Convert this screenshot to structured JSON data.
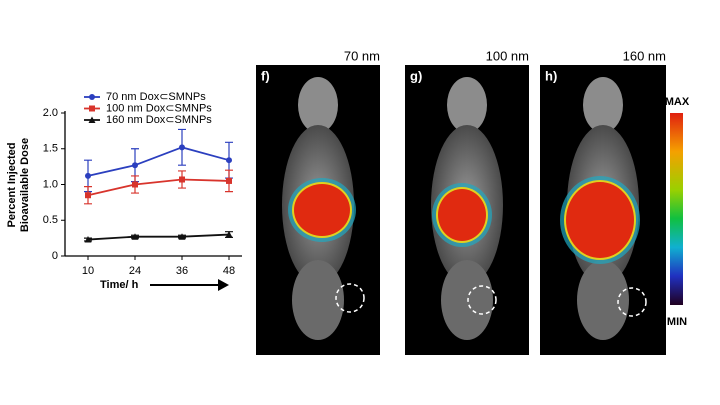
{
  "chart_data": {
    "type": "line",
    "y_label_lines": [
      "Percent Injected",
      "Bioavailable Dose"
    ],
    "x_label": "Time/ h",
    "categories": [
      "10",
      "24",
      "36",
      "48"
    ],
    "ylim": [
      0,
      2
    ],
    "yticks": [
      0,
      0.5,
      {
        "value": 1,
        "label": "1.0"
      },
      1.5,
      {
        "value": 2,
        "label": "2.0"
      }
    ],
    "series": [
      {
        "name": "70 nm Dox⊂SMNPs",
        "color": "#2b3fbf",
        "marker": "circle",
        "values": [
          1.12,
          1.27,
          1.52,
          1.34
        ],
        "errors": [
          0.22,
          0.23,
          0.25,
          0.25
        ]
      },
      {
        "name": "100 nm Dox⊂SMNPs",
        "color": "#d8342c",
        "marker": "square",
        "values": [
          0.85,
          1.0,
          1.07,
          1.05
        ],
        "errors": [
          0.12,
          0.12,
          0.12,
          0.15
        ]
      },
      {
        "name": "160 nm Dox⊂SMNPs",
        "color": "#111111",
        "marker": "triangle",
        "values": [
          0.23,
          0.27,
          0.27,
          0.3
        ],
        "errors": [
          0.02,
          0.02,
          0.02,
          0.04
        ]
      }
    ]
  },
  "panels": [
    {
      "letter": "f)",
      "size": "70 nm"
    },
    {
      "letter": "g)",
      "size": "100 nm"
    },
    {
      "letter": "h)",
      "size": "160 nm"
    }
  ],
  "colorbar": {
    "max": "MAX",
    "min": "MIN"
  }
}
